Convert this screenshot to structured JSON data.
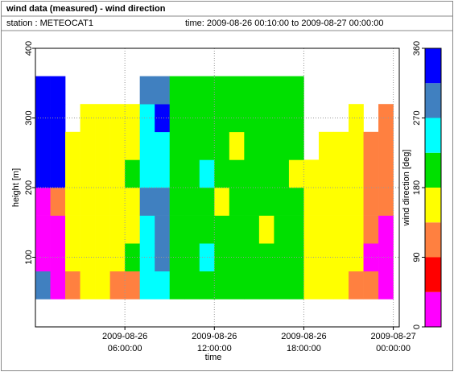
{
  "chart_data": {
    "type": "heatmap",
    "title": "wind data (measured) - wind direction",
    "station": "station : METEOCAT1",
    "period": "time: 2009-08-26 00:10:00 to 2009-08-27 00:00:00",
    "xlabel": "time",
    "ylabel": "height [m]",
    "xlim": [
      0,
      24.4
    ],
    "ylim": [
      0,
      400
    ],
    "xticks": [
      {
        "value": 6,
        "label": "2009-08-26 06:00:00"
      },
      {
        "value": 12,
        "label": "2009-08-26 12:00:00"
      },
      {
        "value": 18,
        "label": "2009-08-26 18:00:00"
      },
      {
        "value": 24,
        "label": "2009-08-27 00:00:00"
      }
    ],
    "yticks": [
      100,
      200,
      300,
      400
    ],
    "grid": true,
    "xbins": [
      0,
      1,
      2,
      3,
      4,
      5,
      6,
      7,
      8,
      9,
      10,
      11,
      12,
      13,
      14,
      15,
      16,
      17,
      18,
      19,
      20,
      21,
      22,
      23,
      24
    ],
    "ybins": [
      40,
      80,
      120,
      160,
      200,
      240,
      280,
      320,
      360
    ],
    "values": [
      [
        300,
        20,
        20,
        20,
        315,
        315,
        315,
        315
      ],
      [
        20,
        20,
        20,
        110,
        315,
        315,
        350,
        350
      ],
      [
        110,
        160,
        160,
        160,
        160,
        160,
        null,
        null
      ],
      [
        160,
        160,
        160,
        160,
        160,
        160,
        160,
        null
      ],
      [
        160,
        160,
        160,
        160,
        160,
        160,
        160,
        null
      ],
      [
        110,
        160,
        160,
        160,
        160,
        160,
        160,
        null
      ],
      [
        110,
        200,
        160,
        160,
        200,
        160,
        160,
        null
      ],
      [
        250,
        250,
        250,
        290,
        250,
        250,
        250,
        290
      ],
      [
        250,
        300,
        290,
        290,
        250,
        250,
        340,
        290
      ],
      [
        200,
        200,
        200,
        200,
        200,
        200,
        200,
        200
      ],
      [
        200,
        200,
        200,
        200,
        200,
        200,
        200,
        200
      ],
      [
        200,
        250,
        200,
        200,
        250,
        200,
        200,
        200
      ],
      [
        200,
        200,
        200,
        160,
        200,
        200,
        200,
        200
      ],
      [
        200,
        200,
        200,
        200,
        200,
        160,
        200,
        200
      ],
      [
        200,
        200,
        200,
        200,
        200,
        200,
        200,
        200
      ],
      [
        200,
        200,
        160,
        200,
        200,
        200,
        200,
        200
      ],
      [
        200,
        200,
        200,
        200,
        200,
        200,
        200,
        200
      ],
      [
        200,
        200,
        200,
        200,
        160,
        200,
        200,
        200
      ],
      [
        160,
        160,
        160,
        160,
        160,
        null,
        null,
        null
      ],
      [
        160,
        160,
        160,
        160,
        160,
        160,
        null,
        null
      ],
      [
        160,
        160,
        160,
        160,
        160,
        160,
        null,
        null
      ],
      [
        110,
        160,
        160,
        160,
        160,
        160,
        160,
        null
      ],
      [
        110,
        20,
        110,
        110,
        110,
        110,
        null,
        null
      ],
      [
        20,
        20,
        20,
        110,
        110,
        110,
        110,
        null
      ]
    ],
    "colorbar": {
      "label": "wind direction [deg]",
      "lim": [
        0,
        360
      ],
      "ticks": [
        0,
        90,
        180,
        270,
        360
      ],
      "colors": [
        "#ff00ff",
        "#ff0000",
        "#ff8040",
        "#ffff00",
        "#00e000",
        "#00ffff",
        "#4080c0",
        "#0000ff"
      ]
    }
  }
}
